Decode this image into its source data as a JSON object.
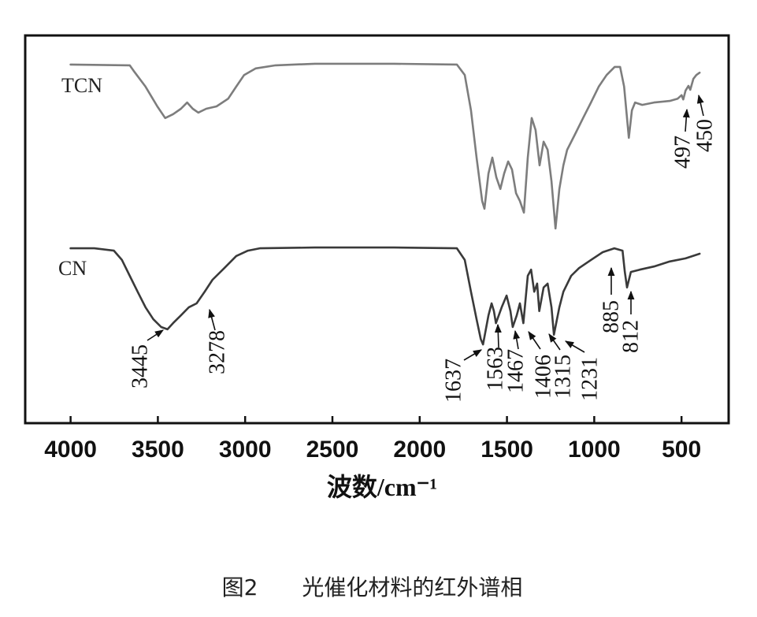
{
  "figure": {
    "caption": "图2　　光催化材料的红外谱相"
  },
  "chart_data": {
    "type": "line",
    "title": "",
    "xlabel": "波数/cm⁻¹",
    "ylabel": "",
    "xlim": [
      4260,
      230
    ],
    "ylim": [
      0,
      100
    ],
    "xticks": [
      4000,
      3500,
      3000,
      2500,
      2000,
      1500,
      1000,
      500
    ],
    "xtick_labels": [
      "4000",
      "3500",
      "3000",
      "2500",
      "2000",
      "1500",
      "1000",
      "500"
    ],
    "grid": false,
    "legend": "inline",
    "series": [
      {
        "name": "TCN",
        "color": "#7d7d7d",
        "x": [
          4000,
          3661,
          3639,
          3571,
          3503,
          3458,
          3413,
          3368,
          3332,
          3300,
          3268,
          3223,
          3164,
          3097,
          3051,
          3006,
          2939,
          2826,
          2600,
          2148,
          1787,
          1742,
          1706,
          1674,
          1642,
          1629,
          1606,
          1584,
          1561,
          1538,
          1516,
          1493,
          1471,
          1448,
          1426,
          1403,
          1381,
          1358,
          1336,
          1313,
          1290,
          1267,
          1245,
          1222,
          1200,
          1177,
          1155,
          1109,
          1064,
          1019,
          974,
          929,
          883,
          852,
          829,
          802,
          784,
          766,
          725,
          658,
          567,
          522,
          500,
          490,
          477,
          460,
          450,
          432,
          415,
          396
        ],
        "y": [
          92.5,
          92.3,
          90.9,
          86.8,
          81.7,
          78.7,
          79.7,
          81.1,
          82.7,
          81.1,
          80.1,
          81.1,
          81.7,
          83.7,
          86.8,
          89.8,
          91.5,
          92.3,
          92.7,
          92.7,
          92.5,
          89.8,
          80.7,
          68.5,
          57.3,
          55.3,
          64.4,
          68.5,
          63.4,
          60.4,
          64.4,
          67.5,
          65.4,
          59.3,
          57.3,
          54.3,
          68.5,
          78.7,
          75.6,
          66.5,
          72.6,
          70.5,
          62.4,
          50.2,
          60.4,
          66.5,
          70.5,
          74.6,
          78.7,
          82.7,
          86.8,
          89.8,
          91.9,
          91.9,
          86.8,
          73.6,
          80.7,
          82.7,
          82.1,
          82.7,
          83.1,
          83.7,
          84.6,
          83.5,
          85.8,
          87.0,
          86.0,
          88.8,
          89.8,
          90.4
        ]
      },
      {
        "name": "CN",
        "color": "#3a3a3a",
        "x": [
          4000,
          3864,
          3752,
          3706,
          3661,
          3616,
          3571,
          3526,
          3481,
          3445,
          3413,
          3368,
          3322,
          3278,
          3232,
          3187,
          3119,
          3051,
          2984,
          2916,
          2600,
          2148,
          1787,
          1742,
          1706,
          1674,
          1650,
          1637,
          1606,
          1588,
          1575,
          1563,
          1530,
          1502,
          1480,
          1467,
          1444,
          1426,
          1406,
          1381,
          1362,
          1344,
          1327,
          1315,
          1290,
          1267,
          1245,
          1231,
          1200,
          1177,
          1132,
          1087,
          1019,
          951,
          885,
          838,
          825,
          812,
          790,
          739,
          658,
          567,
          477,
          396
        ],
        "y": [
          45.1,
          45.1,
          44.5,
          42.1,
          38.0,
          33.9,
          29.9,
          26.8,
          24.8,
          24.2,
          25.8,
          27.8,
          29.9,
          30.9,
          33.9,
          37.0,
          40.0,
          43.1,
          44.5,
          45.1,
          45.3,
          45.3,
          45.1,
          42.1,
          33.9,
          26.8,
          21.7,
          20.3,
          27.8,
          30.9,
          28.9,
          25.8,
          29.9,
          32.9,
          28.9,
          24.8,
          27.8,
          30.9,
          25.8,
          38.0,
          39.6,
          33.9,
          36.0,
          28.9,
          35.0,
          36.0,
          29.9,
          22.8,
          29.9,
          33.9,
          38.0,
          40.0,
          42.1,
          44.1,
          45.1,
          44.5,
          39.0,
          35.0,
          39.0,
          39.6,
          40.4,
          41.7,
          42.5,
          43.7
        ]
      }
    ],
    "annotations": [
      {
        "label": "3445",
        "series": "CN",
        "x": 3445
      },
      {
        "label": "3278",
        "series": "CN",
        "x": 3278
      },
      {
        "label": "1637",
        "series": "CN",
        "x": 1637
      },
      {
        "label": "1563",
        "series": "CN",
        "x": 1563
      },
      {
        "label": "1467",
        "series": "CN",
        "x": 1467
      },
      {
        "label": "1406",
        "series": "CN",
        "x": 1406
      },
      {
        "label": "1315",
        "series": "CN",
        "x": 1315
      },
      {
        "label": "1231",
        "series": "CN",
        "x": 1231
      },
      {
        "label": "885",
        "series": "CN",
        "x": 885
      },
      {
        "label": "812",
        "series": "CN",
        "x": 812
      },
      {
        "label": "497",
        "series": "TCN",
        "x": 497
      },
      {
        "label": "450",
        "series": "TCN",
        "x": 450
      }
    ]
  }
}
